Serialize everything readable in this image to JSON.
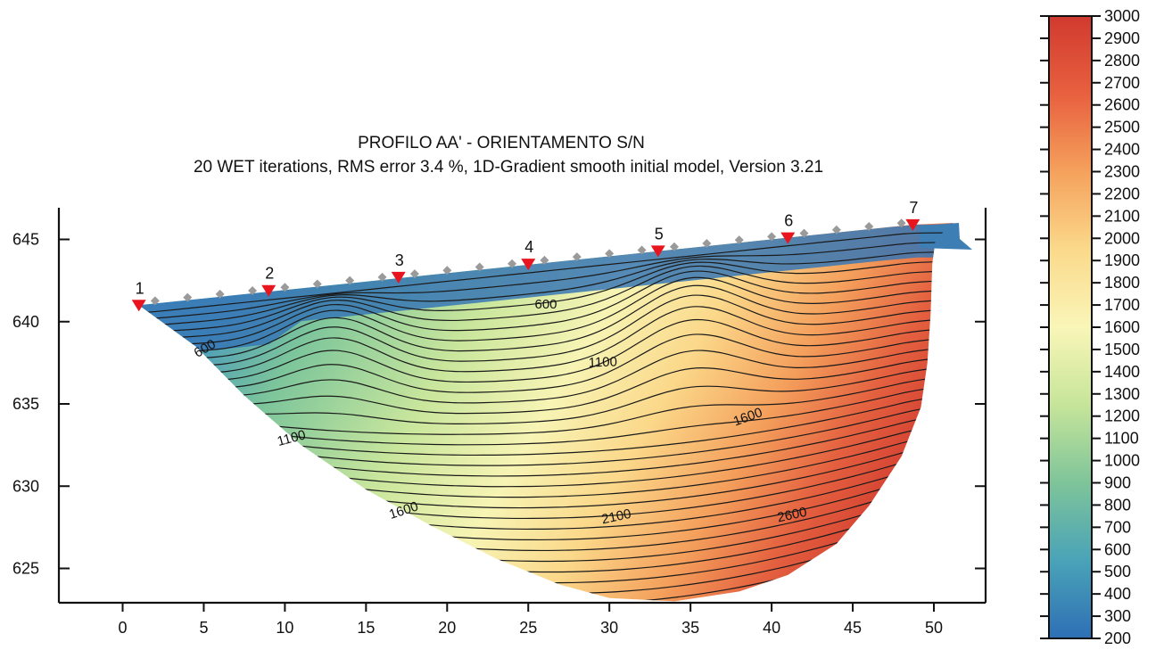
{
  "chart_data": {
    "type": "heatmap",
    "title": "PROFILO AA' - ORIENTAMENTO S/N",
    "subtitle": "20 WET iterations, RMS error 3.4 %, 1D-Gradient smooth initial model, Version 3.21",
    "xlabel": "",
    "ylabel": "",
    "xlim": [
      -4,
      53
    ],
    "ylim": [
      622.9,
      647.2
    ],
    "x_ticks": [
      "0",
      "5",
      "10",
      "15",
      "20",
      "25",
      "30",
      "35",
      "40",
      "45",
      "50"
    ],
    "y_ticks": [
      "625",
      "630",
      "635",
      "640",
      "645"
    ],
    "grid": false,
    "colorbar": {
      "min": 200,
      "max": 3000,
      "ticks": [
        "3000",
        "2900",
        "2800",
        "2700",
        "2600",
        "2500",
        "2400",
        "2300",
        "2200",
        "2100",
        "2000",
        "1900",
        "1800",
        "1700",
        "1600",
        "1500",
        "1400",
        "1300",
        "1200",
        "1100",
        "1000",
        "900",
        "800",
        "700",
        "600",
        "500",
        "400",
        "300",
        "200"
      ],
      "colors": [
        "#2e6fb5",
        "#4aa3b8",
        "#7ec49a",
        "#c6e59a",
        "#f9f6b8",
        "#fbd98b",
        "#f5a15c",
        "#e8603f",
        "#d13a2f"
      ]
    },
    "contour_labels": [
      "600",
      "600",
      "1100",
      "1100",
      "1600",
      "1600",
      "2100",
      "2600"
    ],
    "stations": [
      {
        "label": "1",
        "x": 1.0,
        "y": 641.0
      },
      {
        "label": "2",
        "x": 9.0,
        "y": 641.9
      },
      {
        "label": "3",
        "x": 17.0,
        "y": 642.7
      },
      {
        "label": "4",
        "x": 25.0,
        "y": 643.5
      },
      {
        "label": "5",
        "x": 33.0,
        "y": 644.3
      },
      {
        "label": "6",
        "x": 41.0,
        "y": 645.1
      },
      {
        "label": "7",
        "x": 48.7,
        "y": 645.9
      }
    ],
    "geophones_x": [
      2,
      4,
      6,
      8,
      10,
      12,
      14,
      16,
      18,
      20,
      22,
      24,
      26,
      28,
      30,
      32,
      34,
      36,
      38,
      40,
      42,
      44,
      46,
      48
    ],
    "surface": [
      [
        1.0,
        641.0
      ],
      [
        48.7,
        645.9
      ],
      [
        51.2,
        646.0
      ]
    ],
    "model_bottom": [
      [
        1.0,
        641.0
      ],
      [
        4.5,
        638.5
      ],
      [
        7.5,
        635.5
      ],
      [
        11,
        632.5
      ],
      [
        15,
        629.8
      ],
      [
        19,
        627.6
      ],
      [
        23,
        625.6
      ],
      [
        27,
        624.0
      ],
      [
        30,
        623.2
      ],
      [
        34,
        623.0
      ],
      [
        38,
        623.6
      ],
      [
        41,
        624.6
      ],
      [
        44,
        626.5
      ],
      [
        46,
        628.8
      ],
      [
        48,
        631.8
      ],
      [
        49.2,
        634.8
      ],
      [
        49.6,
        637.5
      ],
      [
        49.8,
        640.5
      ],
      [
        49.9,
        643.5
      ],
      [
        50.1,
        645.0
      ]
    ]
  }
}
